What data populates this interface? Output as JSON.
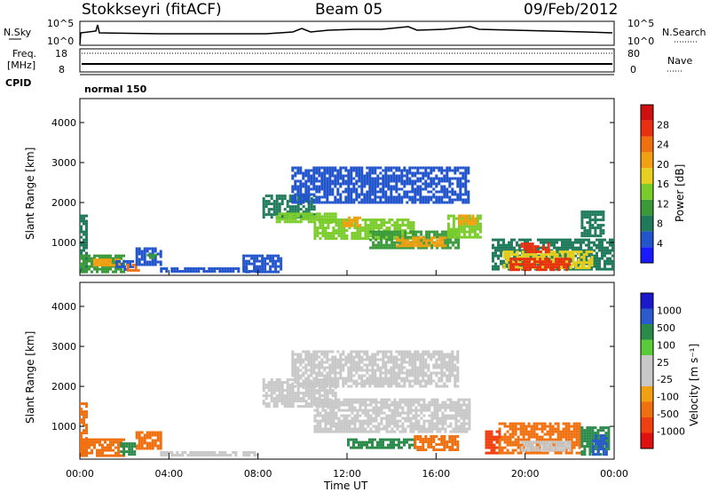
{
  "header": {
    "title": "Stokkseyri (fitACF)",
    "beam": "Beam 05",
    "date": "09/Feb/2012"
  },
  "top_panels": {
    "nsky_label": "N.Sky",
    "nsearch_label": "N.Search",
    "n_ticks": [
      "10^5",
      "10^0"
    ],
    "freq_label_1": "Freq.",
    "freq_label_2": "[MHz]",
    "freq_ticks": [
      "18",
      "8"
    ],
    "nave_label": "Nave",
    "nave_ticks": [
      "80",
      "0"
    ],
    "cpid_label": "CPID",
    "cpid_value": "normal 150"
  },
  "colors": {
    "power_scale": [
      "#1a1aff",
      "#2255cc",
      "#1e7a5a",
      "#3a9a3a",
      "#7acc2a",
      "#e8d020",
      "#f0a010",
      "#f07010",
      "#e83010",
      "#d01010"
    ],
    "velocity_scale": [
      "#e01010",
      "#f04010",
      "#f07010",
      "#f0a010",
      "#c8c8c8",
      "#c8c8c8",
      "#5acc3a",
      "#2a8a4a",
      "#2a5acc",
      "#1a1acc"
    ]
  },
  "chart_data": [
    {
      "type": "heatmap",
      "name": "power-panel",
      "ylabel": "Slant Range [km]",
      "xlabel": "",
      "xlim": [
        0,
        24
      ],
      "ylim": [
        180,
        4600
      ],
      "yticks": [
        1000,
        2000,
        3000,
        4000
      ],
      "colorbar_label": "Power [dB]",
      "colorbar_ticks": [
        "4",
        "8",
        "12",
        "16",
        "20",
        "24",
        "28"
      ],
      "colorbar_range": [
        0,
        32
      ],
      "patches": [
        {
          "t0": 0.0,
          "t1": 0.3,
          "r0": 280,
          "r1": 1700,
          "value": 7
        },
        {
          "t0": 0.0,
          "t1": 2.0,
          "r0": 280,
          "r1": 700,
          "value": 10
        },
        {
          "t0": 0.6,
          "t1": 1.8,
          "r0": 430,
          "r1": 600,
          "value": 22
        },
        {
          "t0": 1.6,
          "t1": 2.4,
          "r0": 320,
          "r1": 560,
          "value": 6
        },
        {
          "t0": 2.1,
          "t1": 2.6,
          "r0": 320,
          "r1": 470,
          "value": 24
        },
        {
          "t0": 2.5,
          "t1": 3.6,
          "r0": 420,
          "r1": 880,
          "value": 6
        },
        {
          "t0": 3.0,
          "t1": 3.4,
          "r0": 640,
          "r1": 720,
          "value": 12
        },
        {
          "t0": 3.6,
          "t1": 8.0,
          "r0": 260,
          "r1": 380,
          "value": 5
        },
        {
          "t0": 7.3,
          "t1": 9.0,
          "r0": 260,
          "r1": 700,
          "value": 6
        },
        {
          "t0": 8.2,
          "t1": 10.5,
          "r0": 1650,
          "r1": 2200,
          "value": 8
        },
        {
          "t0": 8.8,
          "t1": 11.5,
          "r0": 1500,
          "r1": 1750,
          "value": 14
        },
        {
          "t0": 10.5,
          "t1": 15.0,
          "r0": 1100,
          "r1": 1600,
          "value": 14
        },
        {
          "t0": 11.8,
          "t1": 12.6,
          "r0": 1450,
          "r1": 1650,
          "value": 20
        },
        {
          "t0": 13.0,
          "t1": 17.0,
          "r0": 900,
          "r1": 1300,
          "value": 12
        },
        {
          "t0": 14.2,
          "t1": 16.4,
          "r0": 950,
          "r1": 1150,
          "value": 22
        },
        {
          "t0": 16.5,
          "t1": 18.0,
          "r0": 1150,
          "r1": 1700,
          "value": 14
        },
        {
          "t0": 17.0,
          "t1": 17.8,
          "r0": 1500,
          "r1": 1700,
          "value": 20
        },
        {
          "t0": 9.5,
          "t1": 17.5,
          "r0": 2000,
          "r1": 2900,
          "value": 5
        },
        {
          "t0": 18.5,
          "t1": 24.0,
          "r0": 320,
          "r1": 1100,
          "value": 8
        },
        {
          "t0": 19.0,
          "t1": 23.0,
          "r0": 350,
          "r1": 800,
          "value": 18
        },
        {
          "t0": 19.3,
          "t1": 22.0,
          "r0": 350,
          "r1": 620,
          "value": 28
        },
        {
          "t0": 19.8,
          "t1": 21.0,
          "r0": 800,
          "r1": 1000,
          "value": 26
        },
        {
          "t0": 22.5,
          "t1": 23.5,
          "r0": 1200,
          "r1": 1800,
          "value": 9
        }
      ]
    },
    {
      "type": "heatmap",
      "name": "velocity-panel",
      "ylabel": "Slant Range [km]",
      "xlabel": "Time UT",
      "xlim": [
        0,
        24
      ],
      "ylim": [
        180,
        4600
      ],
      "yticks": [
        1000,
        2000,
        3000,
        4000
      ],
      "xticks": [
        "00:00",
        "04:00",
        "08:00",
        "12:00",
        "16:00",
        "20:00",
        "00:00"
      ],
      "colorbar_label": "Velocity [m s⁻¹]",
      "colorbar_ticks": [
        "-1000",
        "-500",
        "-100",
        "-25",
        "25",
        "100",
        "500",
        "1000"
      ],
      "patches": [
        {
          "t0": 0.0,
          "t1": 0.3,
          "r0": 280,
          "r1": 1600,
          "value": -300
        },
        {
          "t0": 0.0,
          "t1": 2.0,
          "r0": 280,
          "r1": 700,
          "value": -400
        },
        {
          "t0": 2.5,
          "t1": 3.6,
          "r0": 420,
          "r1": 880,
          "value": -400
        },
        {
          "t0": 1.8,
          "t1": 2.4,
          "r0": 300,
          "r1": 600,
          "value": 150
        },
        {
          "t0": 3.6,
          "t1": 8.0,
          "r0": 260,
          "r1": 380,
          "value": 0
        },
        {
          "t0": 8.2,
          "t1": 11.5,
          "r0": 1500,
          "r1": 2200,
          "value": 0
        },
        {
          "t0": 10.5,
          "t1": 17.5,
          "r0": 900,
          "r1": 1700,
          "value": 0
        },
        {
          "t0": 9.5,
          "t1": 17.0,
          "r0": 2000,
          "r1": 2900,
          "value": 0
        },
        {
          "t0": 12.0,
          "t1": 15.0,
          "r0": 500,
          "r1": 700,
          "value": 150
        },
        {
          "t0": 15.0,
          "t1": 17.0,
          "r0": 420,
          "r1": 780,
          "value": -400
        },
        {
          "t0": 18.2,
          "t1": 18.9,
          "r0": 350,
          "r1": 900,
          "value": -600
        },
        {
          "t0": 18.8,
          "t1": 22.5,
          "r0": 320,
          "r1": 1100,
          "value": -350
        },
        {
          "t0": 19.8,
          "t1": 22.0,
          "r0": 420,
          "r1": 640,
          "value": 0
        },
        {
          "t0": 22.5,
          "t1": 23.8,
          "r0": 300,
          "r1": 1000,
          "value": 120
        },
        {
          "t0": 23.0,
          "t1": 23.6,
          "r0": 300,
          "r1": 800,
          "value": 600
        }
      ]
    }
  ]
}
